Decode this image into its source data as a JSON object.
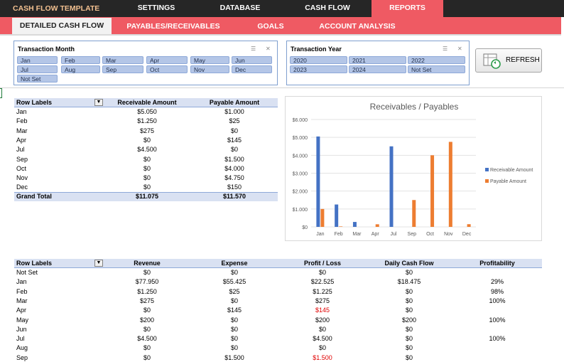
{
  "app_title": "CASH FLOW TEMPLATE",
  "nav": [
    {
      "label": "SETTINGS"
    },
    {
      "label": "DATABASE"
    },
    {
      "label": "CASH FLOW"
    },
    {
      "label": "REPORTS"
    }
  ],
  "subnav": [
    {
      "label": "DETAILED CASH FLOW"
    },
    {
      "label": "PAYABLES/RECEIVABLES LIST"
    },
    {
      "label": "GOALS"
    },
    {
      "label": "ACCOUNT ANALYSIS"
    }
  ],
  "month_slicer": {
    "title": "Transaction Month",
    "items": [
      "Jan",
      "Feb",
      "Mar",
      "Apr",
      "May",
      "Jun",
      "Jul",
      "Aug",
      "Sep",
      "Oct",
      "Nov",
      "Dec",
      "Not Set"
    ]
  },
  "year_slicer": {
    "title": "Transaction Year",
    "items": [
      "2020",
      "2021",
      "2022",
      "2023",
      "2024",
      "Not Set"
    ]
  },
  "refresh_label": "REFRESH",
  "pivot1": {
    "headers": [
      "Row Labels",
      "Receivable Amount",
      "Payable Amount"
    ],
    "rows": [
      [
        "Jan",
        "$5.050",
        "$1.000"
      ],
      [
        "Feb",
        "$1.250",
        "$25"
      ],
      [
        "Mar",
        "$275",
        "$0"
      ],
      [
        "Apr",
        "$0",
        "$145"
      ],
      [
        "Jul",
        "$4.500",
        "$0"
      ],
      [
        "Sep",
        "$0",
        "$1.500"
      ],
      [
        "Oct",
        "$0",
        "$4.000"
      ],
      [
        "Nov",
        "$0",
        "$4.750"
      ],
      [
        "Dec",
        "$0",
        "$150"
      ]
    ],
    "total": [
      "Grand Total",
      "$11.075",
      "$11.570"
    ]
  },
  "chart_data": {
    "type": "bar",
    "title": "Receivables / Payables",
    "categories": [
      "Jan",
      "Feb",
      "Mar",
      "Apr",
      "Jul",
      "Sep",
      "Oct",
      "Nov",
      "Dec"
    ],
    "series": [
      {
        "name": "Receivable Amount",
        "color": "#4472c4",
        "values": [
          5050,
          1250,
          275,
          0,
          4500,
          0,
          0,
          0,
          0
        ]
      },
      {
        "name": "Payable Amount",
        "color": "#ed7d31",
        "values": [
          1000,
          25,
          0,
          145,
          0,
          1500,
          4000,
          4750,
          150
        ]
      }
    ],
    "ylim": [
      0,
      6000
    ],
    "yticks": [
      "$0",
      "$1.000",
      "$2.000",
      "$3.000",
      "$4.000",
      "$5.000",
      "$6.000"
    ],
    "grid": true,
    "legend": "right"
  },
  "pivot2": {
    "headers": [
      "Row Labels",
      "Revenue",
      "Expense",
      "Profit / Loss",
      "Daily Cash Flow",
      "Profitability"
    ],
    "rows": [
      {
        "cells": [
          "Not Set",
          "$0",
          "$0",
          "$0",
          "$0",
          ""
        ],
        "loss": false
      },
      {
        "cells": [
          "Jan",
          "$77.950",
          "$55.425",
          "$22.525",
          "$18.475",
          "29%"
        ],
        "loss": false
      },
      {
        "cells": [
          "Feb",
          "$1.250",
          "$25",
          "$1.225",
          "$0",
          "98%"
        ],
        "loss": false
      },
      {
        "cells": [
          "Mar",
          "$275",
          "$0",
          "$275",
          "$0",
          "100%"
        ],
        "loss": false
      },
      {
        "cells": [
          "Apr",
          "$0",
          "$145",
          "$145",
          "$0",
          ""
        ],
        "loss": true
      },
      {
        "cells": [
          "May",
          "$200",
          "$0",
          "$200",
          "$200",
          "100%"
        ],
        "loss": false
      },
      {
        "cells": [
          "Jun",
          "$0",
          "$0",
          "$0",
          "$0",
          ""
        ],
        "loss": false
      },
      {
        "cells": [
          "Jul",
          "$4.500",
          "$0",
          "$4.500",
          "$0",
          "100%"
        ],
        "loss": false
      },
      {
        "cells": [
          "Aug",
          "$0",
          "$0",
          "$0",
          "$0",
          ""
        ],
        "loss": false
      },
      {
        "cells": [
          "Sep",
          "$0",
          "$1.500",
          "$1.500",
          "$0",
          ""
        ],
        "loss": true
      }
    ]
  }
}
